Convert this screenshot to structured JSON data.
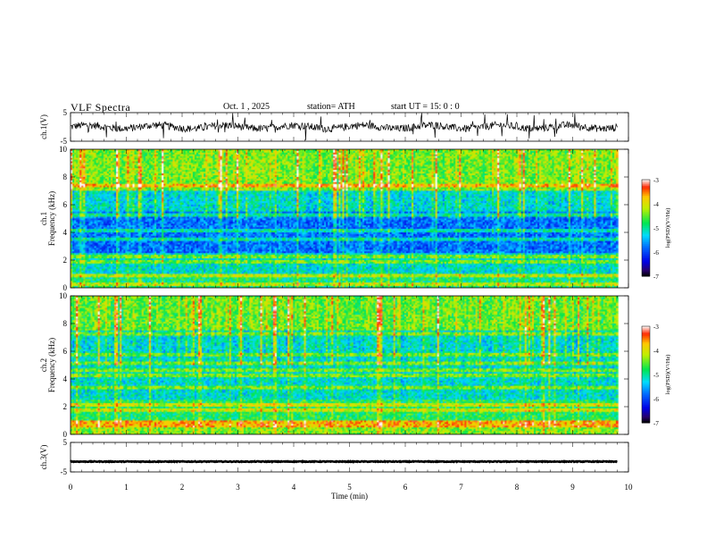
{
  "header": {
    "title": "VLF  Spectra",
    "date": "Oct. 1  , 2025",
    "station": "station= ATH",
    "start_ut": "start  UT  =    15: 0   : 0"
  },
  "chart_data": [
    {
      "type": "line",
      "name": "ch.1 waveform",
      "ylabel": "ch.1(V)",
      "ylim": [
        -5,
        5
      ],
      "yticks": [
        "5",
        "-5"
      ],
      "xlim": [
        0,
        10
      ],
      "series_note": "noisy voltage trace spanning 0 to ~9.8 min, mostly between -3 and +3 V"
    },
    {
      "type": "heatmap",
      "name": "ch.1 spectrogram",
      "ylabel": "ch.1\nFrequency  (kHz)",
      "ylabel_lines": [
        "ch.1",
        "Frequency  (kHz)"
      ],
      "ylim": [
        0,
        10
      ],
      "yticks": [
        "0",
        "2",
        "4",
        "6",
        "8",
        "10"
      ],
      "xlim": [
        0,
        10
      ],
      "colorbar": {
        "label": "log(PSD)(V²/Hz)",
        "range": [
          -7,
          -3
        ],
        "ticks": [
          "-3",
          "-4",
          "-5",
          "-6",
          "-7"
        ]
      }
    },
    {
      "type": "heatmap",
      "name": "ch.2 spectrogram",
      "ylabel_lines": [
        "ch.2",
        "Frequency  (kHz)"
      ],
      "ylim": [
        0,
        10
      ],
      "yticks": [
        "0",
        "2",
        "4",
        "6",
        "8",
        "10"
      ],
      "xlim": [
        0,
        10
      ],
      "colorbar": {
        "label": "log(PSD)(V²/Hz)",
        "range": [
          -7,
          -3
        ],
        "ticks": [
          "-3",
          "-4",
          "-5",
          "-6",
          "-7"
        ]
      }
    },
    {
      "type": "line",
      "name": "ch.3 waveform",
      "ylabel": "ch.3(V)",
      "ylim": [
        -5,
        5
      ],
      "yticks": [
        "5",
        "-5"
      ],
      "xlim": [
        0,
        10
      ],
      "series_note": "nearly constant trace at about -1.5 V"
    }
  ],
  "xaxis": {
    "label": "Time  (min)",
    "ticks": [
      "0",
      "1",
      "2",
      "3",
      "4",
      "5",
      "6",
      "7",
      "8",
      "9",
      "10"
    ],
    "range": [
      0,
      10
    ]
  }
}
